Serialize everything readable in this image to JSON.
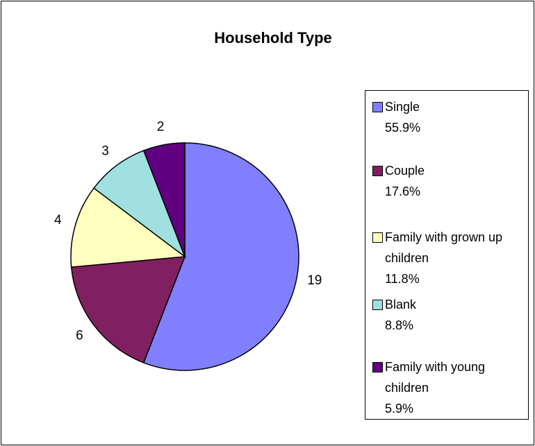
{
  "chart_data": {
    "type": "pie",
    "title": "Household Type",
    "categories": [
      "Single",
      "Couple",
      "Family with grown up children",
      "Blank",
      "Family with young children"
    ],
    "values": [
      19,
      6,
      4,
      3,
      2
    ],
    "percent_labels": [
      "55.9%",
      "17.6%",
      "11.8%",
      "8.8%",
      "5.9%"
    ],
    "colors": [
      "#8080ff",
      "#802060",
      "#ffffc0",
      "#a0e0e0",
      "#600080"
    ],
    "legend": "right"
  }
}
